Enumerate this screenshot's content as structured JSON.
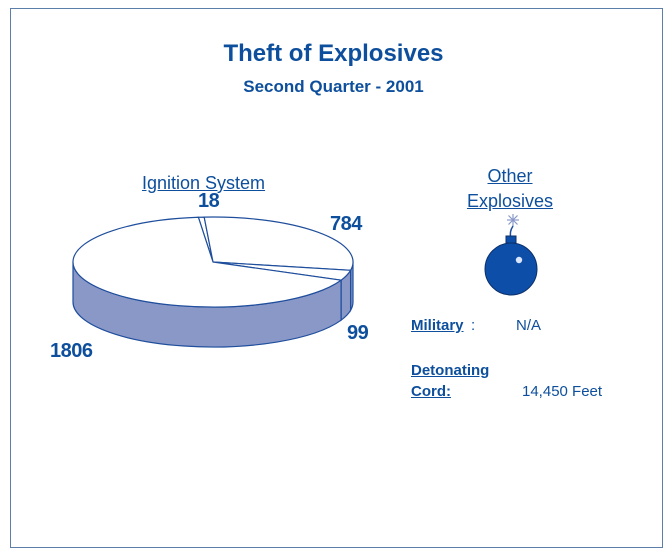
{
  "chart_data": {
    "type": "pie",
    "title": "Theft of Explosives",
    "subtitle": "Second Quarter - 2001",
    "group_label": "Ignition System",
    "slices": [
      {
        "value": 18
      },
      {
        "value": 784
      },
      {
        "value": 99
      },
      {
        "value": 1806
      }
    ],
    "colors": {
      "face": "#ffffff",
      "side": "#8a98c8",
      "line": "#1f4e9c"
    }
  },
  "other": {
    "heading_line1": "Other",
    "heading_line2": "Explosives",
    "icon": "bomb-icon",
    "military_label": "Military",
    "military_colon": ":",
    "military_value": "N/A",
    "cord_label_line1": "Detonating",
    "cord_label_line2": "Cord:",
    "cord_value": "14,450 Feet"
  }
}
